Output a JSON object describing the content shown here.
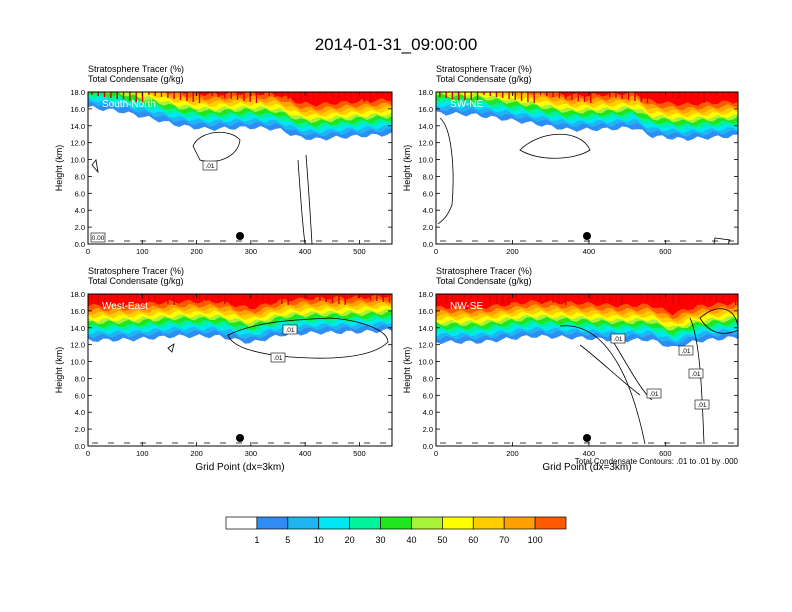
{
  "figure": {
    "title": "2014-01-31_09:00:00",
    "footnote": "Total Condensate Contours: .01 to .01 by .000"
  },
  "colors": {
    "levels": [
      "#ffffff",
      "#2f8cf2",
      "#1fb4f2",
      "#00e6f2",
      "#00f29a",
      "#20e61e",
      "#a8f23a",
      "#ffff00",
      "#ffcc00",
      "#ffa000",
      "#ff5a00",
      "#ff0000"
    ],
    "contour": "#000000"
  },
  "colorbar": {
    "labels": [
      "1",
      "5",
      "10",
      "20",
      "30",
      "40",
      "50",
      "60",
      "70",
      "100"
    ]
  },
  "chart_data": [
    {
      "type": "heatmap",
      "title": "Stratosphere Tracer   (%)",
      "subtitle": "Total Condensate   (g/kg)",
      "panel_label": "South-North",
      "ylabel": "Height (km)",
      "xlabel": "",
      "xlim": [
        0,
        560
      ],
      "ylim": [
        0,
        18
      ],
      "xticks": [
        "0",
        "100",
        "200",
        "300",
        "400",
        "500"
      ],
      "yticks": [
        "0.0",
        "2.0",
        "4.0",
        "6.0",
        "8.0",
        "10.0",
        "12.0",
        "14.0",
        "16.0",
        "18.0"
      ],
      "contour_labels": [
        ".01",
        "0.00"
      ],
      "marker_x": 280,
      "tracer_base_km": [
        [
          0,
          16.2
        ],
        [
          60,
          15.7
        ],
        [
          120,
          14.8
        ],
        [
          170,
          14.0
        ],
        [
          220,
          13.6
        ],
        [
          300,
          13.8
        ],
        [
          350,
          13.6
        ],
        [
          390,
          12.6
        ],
        [
          420,
          12.4
        ],
        [
          480,
          12.7
        ],
        [
          560,
          13.0
        ]
      ]
    },
    {
      "type": "heatmap",
      "title": "Stratosphere Tracer   (%)",
      "subtitle": "Total Condensate   (g/kg)",
      "panel_label": "SW-NE",
      "ylabel": "Height (km)",
      "xlabel": "",
      "xlim": [
        0,
        790
      ],
      "ylim": [
        0,
        18
      ],
      "xticks": [
        "0",
        "200",
        "400",
        "600"
      ],
      "yticks": [
        "0.0",
        "2.0",
        "4.0",
        "6.0",
        "8.0",
        "10.0",
        "12.0",
        "14.0",
        "16.0",
        "18.0"
      ],
      "contour_labels": [],
      "marker_x": 395,
      "tracer_base_km": [
        [
          0,
          15.5
        ],
        [
          100,
          15.3
        ],
        [
          250,
          14.3
        ],
        [
          350,
          13.5
        ],
        [
          450,
          13.6
        ],
        [
          520,
          13.8
        ],
        [
          560,
          12.8
        ],
        [
          650,
          12.4
        ],
        [
          790,
          12.8
        ]
      ]
    },
    {
      "type": "heatmap",
      "title": "Stratosphere Tracer   (%)",
      "subtitle": "Total Condensate   (g/kg)",
      "panel_label": "West-East",
      "ylabel": "Height (km)",
      "xlabel": "Grid Point (dx=3km)",
      "xlim": [
        0,
        560
      ],
      "ylim": [
        0,
        18
      ],
      "xticks": [
        "0",
        "100",
        "200",
        "300",
        "400",
        "500"
      ],
      "yticks": [
        "0.0",
        "2.0",
        "4.0",
        "6.0",
        "8.0",
        "10.0",
        "12.0",
        "14.0",
        "16.0",
        "18.0"
      ],
      "contour_labels": [
        ".01",
        ".01"
      ],
      "marker_x": 280,
      "tracer_base_km": [
        [
          0,
          12.5
        ],
        [
          80,
          12.6
        ],
        [
          160,
          13.0
        ],
        [
          240,
          13.0
        ],
        [
          300,
          12.2
        ],
        [
          360,
          13.2
        ],
        [
          420,
          13.4
        ],
        [
          500,
          13.5
        ],
        [
          560,
          13.7
        ]
      ]
    },
    {
      "type": "heatmap",
      "title": "Stratosphere Tracer   (%)",
      "subtitle": "Total Condensate   (g/kg)",
      "panel_label": "NW-SE",
      "ylabel": "Height (km)",
      "xlabel": "Grid Point (dx=3km)",
      "xlim": [
        0,
        790
      ],
      "ylim": [
        0,
        18
      ],
      "xticks": [
        "0",
        "200",
        "400",
        "600"
      ],
      "yticks": [
        "0.0",
        "2.0",
        "4.0",
        "6.0",
        "8.0",
        "10.0",
        "12.0",
        "14.0",
        "16.0",
        "18.0"
      ],
      "contour_labels": [
        ".01",
        ".01",
        ".01",
        ".01",
        ".01"
      ],
      "marker_x": 395,
      "tracer_base_km": [
        [
          0,
          12.3
        ],
        [
          120,
          12.3
        ],
        [
          250,
          13.0
        ],
        [
          380,
          12.8
        ],
        [
          480,
          12.5
        ],
        [
          560,
          12.6
        ],
        [
          620,
          11.6
        ],
        [
          680,
          12.4
        ],
        [
          790,
          12.9
        ]
      ]
    }
  ]
}
